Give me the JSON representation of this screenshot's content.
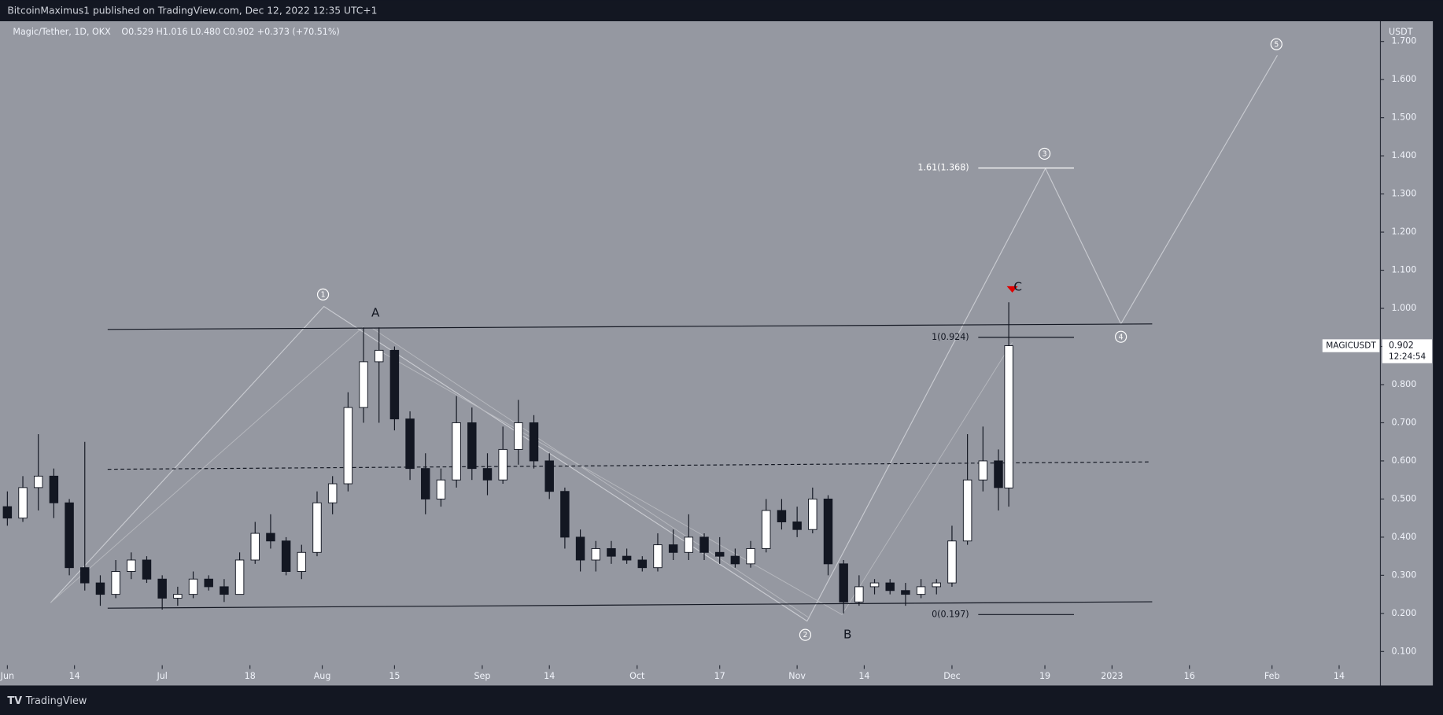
{
  "header": {
    "publisher": "BitcoinMaximus1 published on TradingView.com, Dec 12, 2022 12:35 UTC+1"
  },
  "chart_data": {
    "type": "candlestick",
    "title": "Magic/Tether, 1D, OKX",
    "ohlc_text": "O0.529 H1.016 L0.480 C0.902 +0.373 (+70.51%)",
    "y_axis_label": "USDT",
    "up_color": "#ffffff",
    "down_color": "#131722",
    "x": [
      0,
      3,
      6,
      9,
      12,
      15,
      18,
      21,
      24,
      27,
      30,
      33,
      36,
      39,
      42,
      45,
      48,
      51,
      54,
      57,
      60,
      63,
      66,
      69,
      72,
      75,
      78,
      81,
      84,
      87,
      90,
      93,
      96,
      99,
      102,
      105,
      108,
      111,
      114,
      117,
      120,
      123,
      126,
      129,
      132,
      135,
      138,
      141,
      144,
      147,
      150,
      153,
      156,
      159,
      162,
      165,
      168,
      171,
      174,
      177,
      180,
      183,
      186,
      189,
      192,
      194
    ],
    "open": [
      0.48,
      0.45,
      0.53,
      0.56,
      0.49,
      0.32,
      0.28,
      0.25,
      0.31,
      0.34,
      0.29,
      0.24,
      0.25,
      0.29,
      0.27,
      0.25,
      0.34,
      0.41,
      0.39,
      0.31,
      0.36,
      0.49,
      0.54,
      0.74,
      0.86,
      0.89,
      0.71,
      0.58,
      0.5,
      0.55,
      0.7,
      0.58,
      0.55,
      0.63,
      0.7,
      0.6,
      0.52,
      0.4,
      0.34,
      0.37,
      0.35,
      0.34,
      0.32,
      0.38,
      0.36,
      0.4,
      0.36,
      0.35,
      0.33,
      0.37,
      0.47,
      0.44,
      0.42,
      0.5,
      0.33,
      0.23,
      0.27,
      0.28,
      0.26,
      0.25,
      0.27,
      0.28,
      0.39,
      0.55,
      0.6,
      0.529
    ],
    "high": [
      0.52,
      0.56,
      0.67,
      0.58,
      0.5,
      0.65,
      0.3,
      0.34,
      0.36,
      0.35,
      0.3,
      0.27,
      0.31,
      0.3,
      0.29,
      0.36,
      0.44,
      0.46,
      0.4,
      0.38,
      0.52,
      0.56,
      0.78,
      0.95,
      0.95,
      0.9,
      0.73,
      0.62,
      0.58,
      0.77,
      0.74,
      0.62,
      0.69,
      0.76,
      0.72,
      0.62,
      0.53,
      0.42,
      0.39,
      0.39,
      0.37,
      0.35,
      0.41,
      0.42,
      0.46,
      0.41,
      0.4,
      0.37,
      0.39,
      0.5,
      0.5,
      0.48,
      0.53,
      0.51,
      0.34,
      0.3,
      0.29,
      0.29,
      0.28,
      0.29,
      0.29,
      0.43,
      0.67,
      0.69,
      0.63,
      1.016
    ],
    "low": [
      0.43,
      0.44,
      0.47,
      0.45,
      0.3,
      0.26,
      0.22,
      0.24,
      0.29,
      0.28,
      0.21,
      0.22,
      0.24,
      0.26,
      0.23,
      0.25,
      0.33,
      0.37,
      0.3,
      0.29,
      0.35,
      0.46,
      0.52,
      0.7,
      0.7,
      0.68,
      0.55,
      0.46,
      0.48,
      0.53,
      0.55,
      0.51,
      0.54,
      0.59,
      0.58,
      0.5,
      0.37,
      0.31,
      0.31,
      0.33,
      0.33,
      0.31,
      0.31,
      0.34,
      0.34,
      0.34,
      0.33,
      0.32,
      0.32,
      0.36,
      0.42,
      0.4,
      0.41,
      0.3,
      0.2,
      0.22,
      0.25,
      0.25,
      0.22,
      0.24,
      0.25,
      0.27,
      0.38,
      0.52,
      0.47,
      0.48
    ],
    "close": [
      0.45,
      0.53,
      0.56,
      0.49,
      0.32,
      0.28,
      0.25,
      0.31,
      0.34,
      0.29,
      0.24,
      0.25,
      0.29,
      0.27,
      0.25,
      0.34,
      0.41,
      0.39,
      0.31,
      0.36,
      0.49,
      0.54,
      0.74,
      0.86,
      0.89,
      0.71,
      0.58,
      0.5,
      0.55,
      0.7,
      0.58,
      0.55,
      0.63,
      0.7,
      0.6,
      0.52,
      0.4,
      0.34,
      0.37,
      0.35,
      0.34,
      0.32,
      0.38,
      0.36,
      0.4,
      0.36,
      0.35,
      0.33,
      0.37,
      0.47,
      0.44,
      0.42,
      0.5,
      0.33,
      0.23,
      0.27,
      0.28,
      0.26,
      0.25,
      0.27,
      0.28,
      0.39,
      0.55,
      0.6,
      0.53,
      0.902
    ],
    "xlim": [
      0,
      266
    ],
    "xticks": [
      {
        "value": 0,
        "label": "Jun"
      },
      {
        "value": 13,
        "label": "14"
      },
      {
        "value": 30,
        "label": "Jul"
      },
      {
        "value": 47,
        "label": "18"
      },
      {
        "value": 61,
        "label": "Aug"
      },
      {
        "value": 75,
        "label": "15"
      },
      {
        "value": 92,
        "label": "Sep"
      },
      {
        "value": 105,
        "label": "14"
      },
      {
        "value": 122,
        "label": "Oct"
      },
      {
        "value": 138,
        "label": "17"
      },
      {
        "value": 153,
        "label": "Nov"
      },
      {
        "value": 166,
        "label": "14"
      },
      {
        "value": 183,
        "label": "Dec"
      },
      {
        "value": 201,
        "label": "19"
      },
      {
        "value": 214,
        "label": "2023"
      },
      {
        "value": 229,
        "label": "16"
      },
      {
        "value": 245,
        "label": "Feb"
      },
      {
        "value": 258,
        "label": "14"
      }
    ],
    "ylim": [
      0.011,
      1.753
    ],
    "yticks": [
      {
        "value": 0.1,
        "label": "0.100"
      },
      {
        "value": 0.2,
        "label": "0.200"
      },
      {
        "value": 0.3,
        "label": "0.300"
      },
      {
        "value": 0.4,
        "label": "0.400"
      },
      {
        "value": 0.5,
        "label": "0.500"
      },
      {
        "value": 0.6,
        "label": "0.600"
      },
      {
        "value": 0.7,
        "label": "0.700"
      },
      {
        "value": 0.8,
        "label": "0.800"
      },
      {
        "value": 0.9,
        "label": "0.900"
      },
      {
        "value": 1.0,
        "label": "1.000"
      },
      {
        "value": 1.1,
        "label": "1.100"
      },
      {
        "value": 1.2,
        "label": "1.200"
      },
      {
        "value": 1.3,
        "label": "1.300"
      },
      {
        "value": 1.4,
        "label": "1.400"
      },
      {
        "value": 1.5,
        "label": "1.500"
      },
      {
        "value": 1.6,
        "label": "1.600"
      },
      {
        "value": 1.7,
        "label": "1.700"
      }
    ],
    "price_tag": {
      "symbol": "MAGICUSDT",
      "value": 0.902,
      "countdown": "12:24:54"
    },
    "fib_levels": [
      {
        "value": 1.368,
        "label": "1.61(1.368)"
      },
      {
        "value": 0.924,
        "label": "1(0.924)"
      },
      {
        "value": 0.197,
        "label": "0(0.197)"
      }
    ],
    "wave_labels": [
      "1",
      "2",
      "3",
      "4",
      "5"
    ],
    "corrective_labels": [
      "A",
      "B",
      "C"
    ]
  },
  "footer": {
    "brand": "TradingView"
  }
}
